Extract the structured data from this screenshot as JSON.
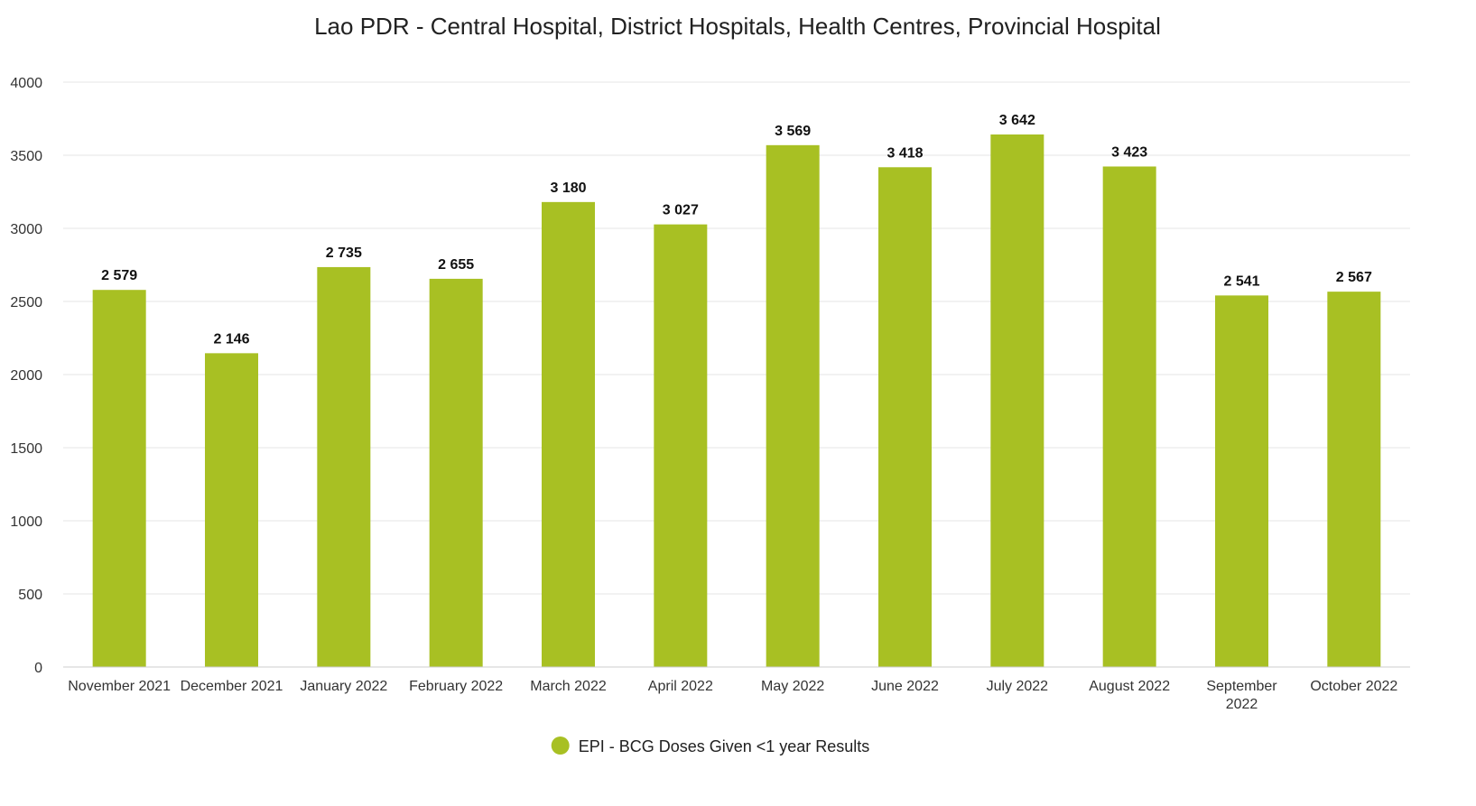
{
  "chart_data": {
    "type": "bar",
    "title": "Lao PDR - Central Hospital, District Hospitals, Health Centres, Provincial Hospital",
    "xlabel": "",
    "ylabel": "",
    "ylim": [
      0,
      4000
    ],
    "yticks": [
      "0",
      "500",
      "1000",
      "1500",
      "2000",
      "2500",
      "3000",
      "3500",
      "4000"
    ],
    "categories": [
      [
        "November 2021"
      ],
      [
        "December 2021"
      ],
      [
        "January 2022"
      ],
      [
        "February 2022"
      ],
      [
        "March 2022"
      ],
      [
        "April 2022"
      ],
      [
        "May 2022"
      ],
      [
        "June 2022"
      ],
      [
        "July 2022"
      ],
      [
        "August 2022"
      ],
      [
        "September",
        "2022"
      ],
      [
        "October 2022"
      ]
    ],
    "series": [
      {
        "name": "EPI - BCG Doses Given <1 year Results",
        "color": "#a8c023",
        "values": [
          2579,
          2146,
          2735,
          2655,
          3180,
          3027,
          3569,
          3418,
          3642,
          3423,
          2541,
          2567
        ],
        "labels": [
          "2 579",
          "2 146",
          "2 735",
          "2 655",
          "3 180",
          "3 027",
          "3 569",
          "3 418",
          "3 642",
          "3 423",
          "2 541",
          "2 567"
        ]
      }
    ],
    "grid": true,
    "legend": "bottom-center"
  }
}
